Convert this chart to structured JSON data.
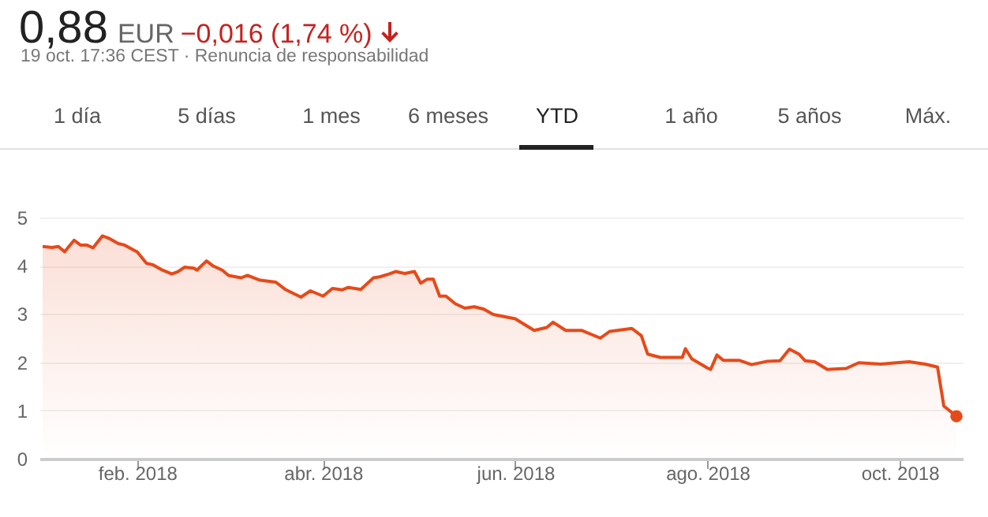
{
  "chart_data": {
    "type": "area",
    "title": "0,88 EUR −0,016 (1,74 %)",
    "subtitle": "19 oct. 17:36 CEST · Renuncia de responsabilidad",
    "annotations": [
      "1 día",
      "5 días",
      "1 mes",
      "6 meses",
      "YTD",
      "1 año",
      "5 años",
      "Máx."
    ],
    "series": [
      {
        "color": "#e64a19",
        "x": [
          "2018-01-02",
          "2018-01-05",
          "2018-01-07",
          "2018-01-09",
          "2018-01-10",
          "2018-01-12",
          "2018-01-14",
          "2018-01-16",
          "2018-01-18",
          "2018-01-21",
          "2018-01-23",
          "2018-01-26",
          "2018-01-28",
          "2018-01-31",
          "2018-02-01",
          "2018-02-04",
          "2018-02-06",
          "2018-02-09",
          "2018-02-12",
          "2018-02-14",
          "2018-02-16",
          "2018-02-19",
          "2018-02-20",
          "2018-02-23",
          "2018-02-25",
          "2018-02-28",
          "2018-03-02",
          "2018-03-06",
          "2018-03-08",
          "2018-03-12",
          "2018-03-17",
          "2018-03-20",
          "2018-03-25",
          "2018-03-28",
          "2018-04-01",
          "2018-04-04",
          "2018-04-07",
          "2018-04-09",
          "2018-04-13",
          "2018-04-17",
          "2018-04-19",
          "2018-04-22",
          "2018-04-24",
          "2018-04-27",
          "2018-04-30",
          "2018-05-02",
          "2018-05-04",
          "2018-05-06",
          "2018-05-08",
          "2018-05-10",
          "2018-05-13",
          "2018-05-16",
          "2018-05-19",
          "2018-05-22",
          "2018-05-25",
          "2018-06-01",
          "2018-06-07",
          "2018-06-11",
          "2018-06-13",
          "2018-06-17",
          "2018-06-22",
          "2018-06-28",
          "2018-07-01",
          "2018-07-08",
          "2018-07-11",
          "2018-07-13",
          "2018-07-17",
          "2018-07-24",
          "2018-07-25",
          "2018-07-27",
          "2018-08-01",
          "2018-08-02",
          "2018-08-04",
          "2018-08-06",
          "2018-08-11",
          "2018-08-15",
          "2018-08-20",
          "2018-08-24",
          "2018-08-27",
          "2018-08-30",
          "2018-09-01",
          "2018-09-04",
          "2018-09-08",
          "2018-09-14",
          "2018-09-18",
          "2018-09-25",
          "2018-09-30",
          "2018-10-04",
          "2018-10-09",
          "2018-10-13",
          "2018-10-15",
          "2018-10-19"
        ],
        "values": [
          4.4,
          4.38,
          4.4,
          4.29,
          4.37,
          4.53,
          4.43,
          4.43,
          4.37,
          4.62,
          4.57,
          4.46,
          4.43,
          4.32,
          4.29,
          4.05,
          4.02,
          3.91,
          3.83,
          3.88,
          3.97,
          3.95,
          3.91,
          4.1,
          4.0,
          3.91,
          3.8,
          3.75,
          3.8,
          3.7,
          3.66,
          3.51,
          3.35,
          3.48,
          3.37,
          3.53,
          3.5,
          3.55,
          3.51,
          3.75,
          3.77,
          3.83,
          3.88,
          3.84,
          3.88,
          3.64,
          3.72,
          3.72,
          3.37,
          3.37,
          3.21,
          3.12,
          3.15,
          3.1,
          2.99,
          2.9,
          2.66,
          2.72,
          2.83,
          2.66,
          2.66,
          2.5,
          2.64,
          2.7,
          2.55,
          2.17,
          2.1,
          2.1,
          2.28,
          2.07,
          1.88,
          1.85,
          2.15,
          2.04,
          2.04,
          1.95,
          2.02,
          2.03,
          2.27,
          2.17,
          2.03,
          2.01,
          1.85,
          1.87,
          1.99,
          1.96,
          1.99,
          2.01,
          1.96,
          1.9,
          1.09,
          0.88
        ]
      },
      {
        "type": "scatter",
        "color": "#e64a19",
        "marker": "circle",
        "x": [
          "2018-10-19"
        ],
        "values": [
          0.88
        ]
      }
    ],
    "xlim": [
      "2018-01-01",
      "2018-10-21"
    ],
    "xticks": [
      {
        "value": "2018-02-01",
        "label": "feb. 2018"
      },
      {
        "value": "2018-04-01",
        "label": "abr. 2018"
      },
      {
        "value": "2018-06-01",
        "label": "jun. 2018"
      },
      {
        "value": "2018-08-01",
        "label": "ago. 2018"
      },
      {
        "value": "2018-10-01",
        "label": "oct. 2018"
      }
    ],
    "ylim": [
      0,
      5
    ],
    "yticks": [
      0,
      1,
      2,
      3,
      4,
      5
    ],
    "grid": "y"
  }
}
